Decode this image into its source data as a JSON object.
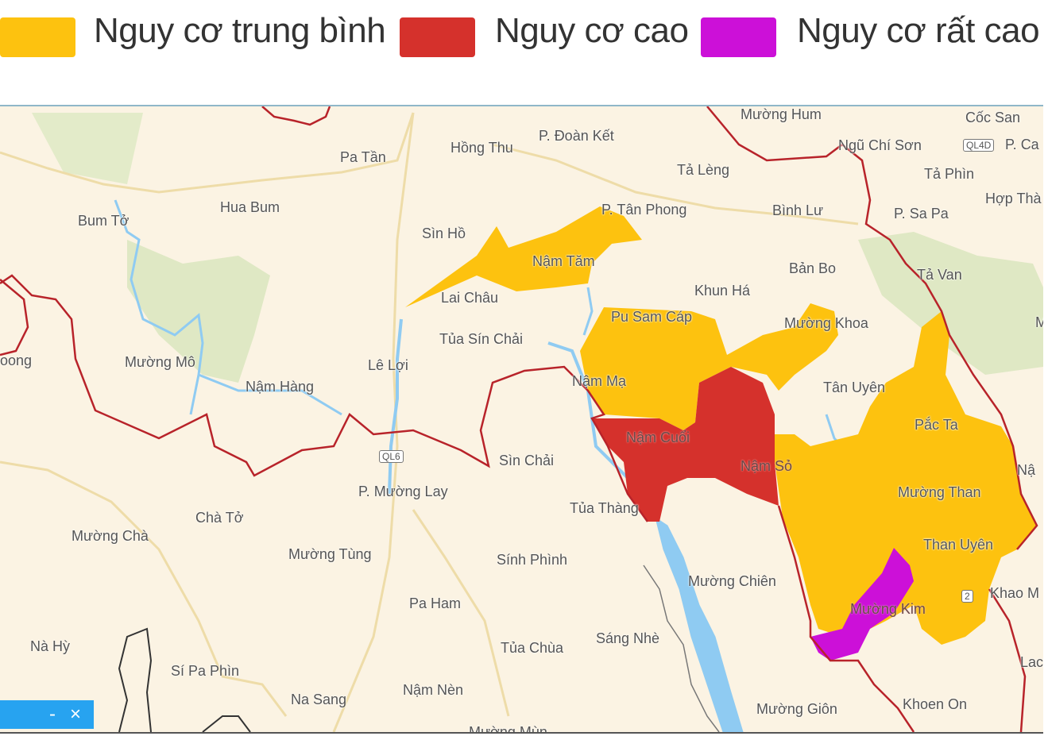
{
  "legend": {
    "items": [
      {
        "label": "Nguy cơ trung bình",
        "color": "#fdc20f"
      },
      {
        "label": "Nguy cơ cao",
        "color": "#d5312c"
      },
      {
        "label": "Nguy cơ rất cao",
        "color": "#cc10d8"
      }
    ]
  },
  "map": {
    "colors": {
      "background": "#fbf3e3",
      "boundary": "#b8232a",
      "water": "#8fcbf2",
      "forest": "#dfe8c4"
    },
    "labels": [
      "Mường Hum",
      "Cốc San",
      "Hồng Thu",
      "P. Đoàn Kết",
      "Pa Tần",
      "Ngũ Chí Sơn",
      "P. Ca",
      "Tả Lèng",
      "Tả Phìn",
      "Hợp Thà",
      "Hua Bum",
      "Bum Tở",
      "Sìn Hồ",
      "P. Tân Phong",
      "Bình Lư",
      "P. Sa Pa",
      "Nậm Tăm",
      "Lai Châu",
      "Bản Bo",
      "Tả Van",
      "Khun Há",
      "Pu Sam Cáp",
      "Mường Khoa",
      "Tủa Sín Chải",
      "oong",
      "Mường Mô",
      "Lê Lợi",
      "Nậm Hàng",
      "Nậm Mạ",
      "Tân Uyên",
      "Pắc Ta",
      "Nậm Cuổi",
      "Sìn Chải",
      "Nậm Sỏ",
      "P. Mường Lay",
      "Mường Than",
      "Nậ",
      "Tủa Thàng",
      "Chà Tở",
      "Mường Chà",
      "Mường Tùng",
      "Sính Phình",
      "Than Uyên",
      "Mường Chiên",
      "Pa Ham",
      "Khao M",
      "Mường Kim",
      "Nà Hỳ",
      "Sáng Nhè",
      "Tủa Chùa",
      "Lac",
      "Sí Pa Phìn",
      "Nậm Nèn",
      "Na Sang",
      "Khoen On",
      "Mường Giôn",
      "Mường Mùn",
      "M"
    ],
    "road_shields": [
      "QL6",
      "QL4D",
      "2"
    ]
  },
  "widget": {
    "minimize": "-",
    "close": "×"
  }
}
